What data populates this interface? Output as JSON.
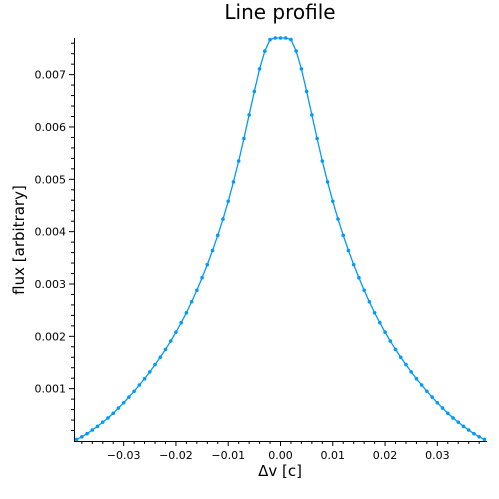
{
  "chart_data": {
    "type": "line",
    "title": "Line profile",
    "xlabel": "Δv [c]",
    "ylabel": "flux [arbitrary]",
    "xlim": [
      -0.0395,
      0.0395
    ],
    "ylim": [
      0,
      0.0077
    ],
    "grid": false,
    "legend": "none",
    "x_ticks": [
      -0.03,
      -0.02,
      -0.01,
      0.0,
      0.01,
      0.02,
      0.03
    ],
    "x_tick_labels": [
      "−0.03",
      "−0.02",
      "−0.01",
      "0.00",
      "0.01",
      "0.02",
      "0.03"
    ],
    "y_ticks": [
      0.001,
      0.002,
      0.003,
      0.004,
      0.005,
      0.006,
      0.007
    ],
    "y_tick_labels": [
      "0.001",
      "0.002",
      "0.003",
      "0.004",
      "0.005",
      "0.006",
      "0.007"
    ],
    "series": [
      {
        "color": "#009AFA",
        "x": [
          -0.039,
          -0.038,
          -0.037,
          -0.036,
          -0.035,
          -0.034,
          -0.033,
          -0.032,
          -0.031,
          -0.03,
          -0.029,
          -0.028,
          -0.027,
          -0.026,
          -0.025,
          -0.024,
          -0.023,
          -0.022,
          -0.021,
          -0.02,
          -0.019,
          -0.018,
          -0.017,
          -0.016,
          -0.015,
          -0.014,
          -0.013,
          -0.012,
          -0.011,
          -0.01,
          -0.009,
          -0.008,
          -0.007,
          -0.006,
          -0.005,
          -0.004,
          -0.003,
          -0.002,
          -0.001,
          0.0,
          0.001,
          0.002,
          0.003,
          0.004,
          0.005,
          0.006,
          0.007,
          0.008,
          0.009,
          0.01,
          0.011,
          0.012,
          0.013,
          0.014,
          0.015,
          0.016,
          0.017,
          0.018,
          0.019,
          0.02,
          0.021,
          0.022,
          0.023,
          0.024,
          0.025,
          0.026,
          0.027,
          0.028,
          0.029,
          0.03,
          0.031,
          0.032,
          0.033,
          0.034,
          0.035,
          0.036,
          0.037,
          0.038,
          0.039
        ],
        "y": [
          3e-05,
          8e-05,
          0.00014,
          0.00021,
          0.00028,
          0.00036,
          0.00044,
          0.00053,
          0.00063,
          0.00073,
          0.00084,
          0.00095,
          0.00107,
          0.00119,
          0.00132,
          0.00146,
          0.0016,
          0.00175,
          0.00191,
          0.00208,
          0.00226,
          0.00245,
          0.00266,
          0.00288,
          0.00312,
          0.00337,
          0.00364,
          0.00393,
          0.00424,
          0.00458,
          0.00495,
          0.00535,
          0.00578,
          0.00623,
          0.00668,
          0.00711,
          0.00745,
          0.00767,
          0.0077,
          0.0077,
          0.0077,
          0.00767,
          0.00745,
          0.00711,
          0.00668,
          0.00623,
          0.00578,
          0.00535,
          0.00495,
          0.00458,
          0.00424,
          0.00393,
          0.00364,
          0.00337,
          0.00312,
          0.00288,
          0.00266,
          0.00245,
          0.00226,
          0.00208,
          0.00191,
          0.00175,
          0.0016,
          0.00146,
          0.00132,
          0.00119,
          0.00107,
          0.00095,
          0.00084,
          0.00073,
          0.00063,
          0.00053,
          0.00044,
          0.00036,
          0.00028,
          0.00021,
          0.00014,
          8e-05,
          3e-05
        ]
      }
    ]
  }
}
